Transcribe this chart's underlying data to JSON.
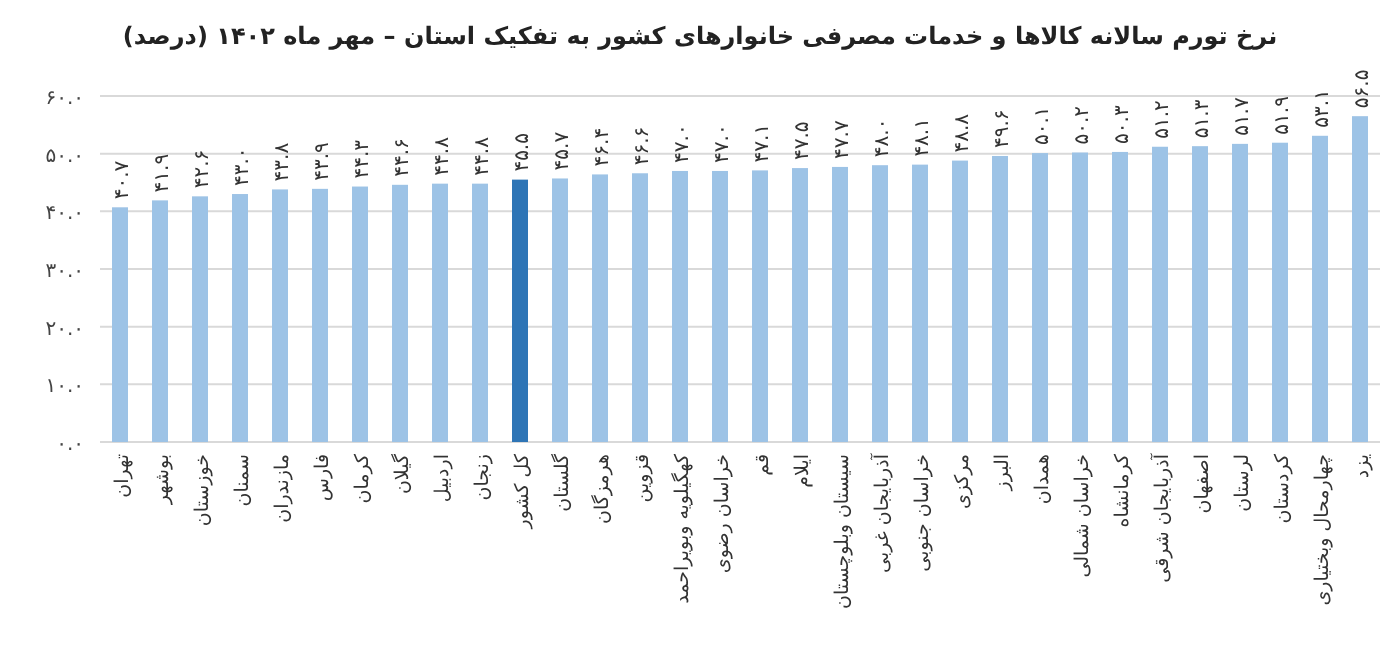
{
  "chart_data": {
    "type": "bar",
    "title": "نرخ تورم سالانه کالاها و خدمات مصرفی خانوارهای کشور به تفکیک استان – مهر ماه ۱۴۰۲ (درصد)",
    "categories": [
      "تهران",
      "بوشهر",
      "خوزستان",
      "سمنان",
      "مازندران",
      "فارس",
      "کرمان",
      "گیلان",
      "اردبیل",
      "زنجان",
      "کل کشور",
      "گلستان",
      "هرمزگان",
      "قزوین",
      "کهگیلویه وبویراحمد",
      "خراسان رضوی",
      "قم",
      "ایلام",
      "سیستان وبلوچستان",
      "آذربایجان غربی",
      "خراسان جنوبی",
      "مرکزی",
      "البرز",
      "همدان",
      "خراسان شمالی",
      "کرمانشاه",
      "آذربایجان شرقی",
      "اصفهان",
      "لرستان",
      "کردستان",
      "چهارمحال وبختیاری",
      "یزد"
    ],
    "values": [
      40.7,
      41.9,
      42.6,
      43.0,
      43.8,
      43.9,
      44.3,
      44.6,
      44.8,
      44.8,
      45.5,
      45.7,
      46.4,
      46.6,
      47.0,
      47.0,
      47.1,
      47.5,
      47.7,
      48.0,
      48.1,
      48.8,
      49.6,
      50.1,
      50.2,
      50.3,
      51.2,
      51.3,
      51.7,
      51.9,
      53.1,
      56.5
    ],
    "value_labels": [
      "۴۰.۷",
      "۴۱.۹",
      "۴۲.۶",
      "۴۳.۰",
      "۴۳.۸",
      "۴۳.۹",
      "۴۴.۳",
      "۴۴.۶",
      "۴۴.۸",
      "۴۴.۸",
      "۴۵.۵",
      "۴۵.۷",
      "۴۶.۴",
      "۴۶.۶",
      "۴۷.۰",
      "۴۷.۰",
      "۴۷.۱",
      "۴۷.۵",
      "۴۷.۷",
      "۴۸.۰",
      "۴۸.۱",
      "۴۸.۸",
      "۴۹.۶",
      "۵۰.۱",
      "۵۰.۲",
      "۵۰.۳",
      "۵۱.۲",
      "۵۱.۳",
      "۵۱.۷",
      "۵۱.۹",
      "۵۳.۱",
      "۵۶.۵"
    ],
    "colors": [
      "#9dc3e6",
      "#9dc3e6",
      "#9dc3e6",
      "#9dc3e6",
      "#9dc3e6",
      "#9dc3e6",
      "#9dc3e6",
      "#9dc3e6",
      "#9dc3e6",
      "#9dc3e6",
      "#2e75b6",
      "#9dc3e6",
      "#9dc3e6",
      "#9dc3e6",
      "#9dc3e6",
      "#9dc3e6",
      "#9dc3e6",
      "#9dc3e6",
      "#9dc3e6",
      "#9dc3e6",
      "#9dc3e6",
      "#9dc3e6",
      "#9dc3e6",
      "#9dc3e6",
      "#9dc3e6",
      "#9dc3e6",
      "#9dc3e6",
      "#9dc3e6",
      "#9dc3e6",
      "#9dc3e6",
      "#9dc3e6",
      "#9dc3e6"
    ],
    "ylim": [
      0,
      60
    ],
    "yticks": [
      {
        "value": 0,
        "label": "۰.۰"
      },
      {
        "value": 10,
        "label": "۱۰.۰"
      },
      {
        "value": 20,
        "label": "۲۰.۰"
      },
      {
        "value": 30,
        "label": "۳۰.۰"
      },
      {
        "value": 40,
        "label": "۴۰.۰"
      },
      {
        "value": 50,
        "label": "۵۰.۰"
      },
      {
        "value": 60,
        "label": "۶۰.۰"
      }
    ],
    "grid": "y"
  }
}
